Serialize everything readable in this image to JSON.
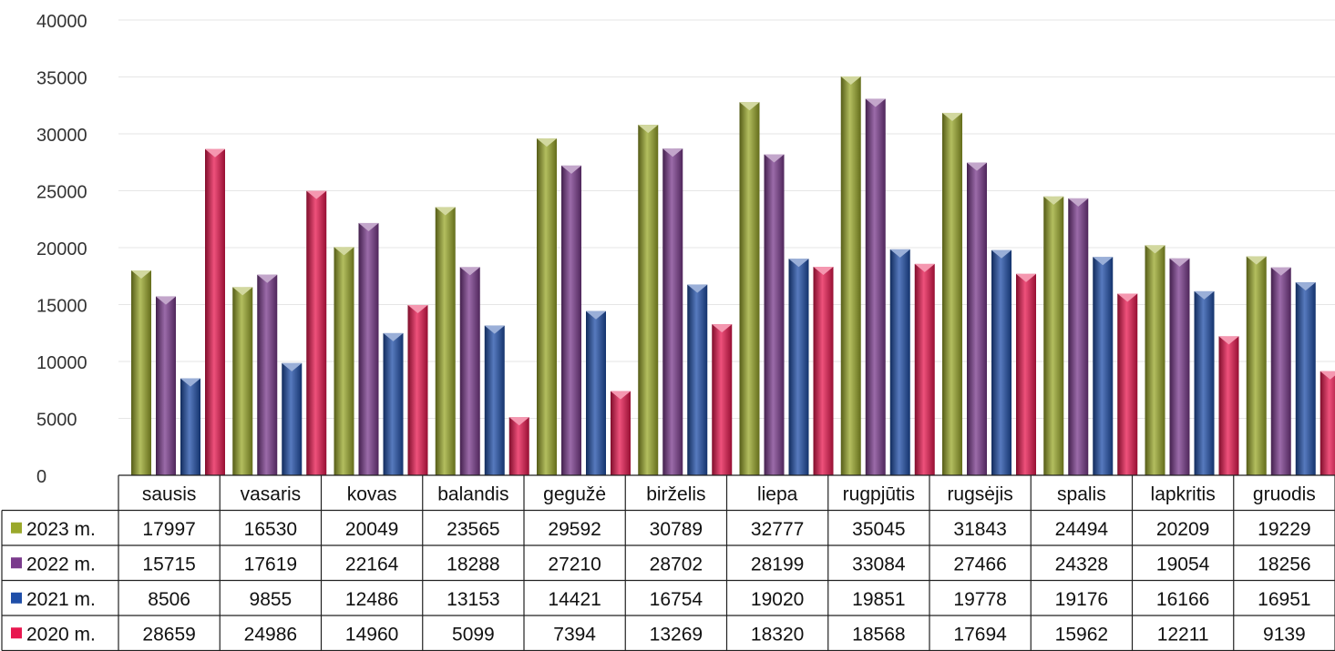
{
  "chart_data": {
    "type": "bar",
    "title": "",
    "xlabel": "",
    "ylabel": "",
    "ylim": [
      0,
      40000
    ],
    "y_ticks": [
      0,
      5000,
      10000,
      15000,
      20000,
      25000,
      30000,
      35000,
      40000
    ],
    "grid": true,
    "legend_placement": "data-table-left",
    "categories": [
      "sausis",
      "vasaris",
      "kovas",
      "balandis",
      "gegužė",
      "birželis",
      "liepa",
      "rugpjūtis",
      "rugsėjis",
      "spalis",
      "lapkritis",
      "gruodis"
    ],
    "series": [
      {
        "name": "2023 m.",
        "color": "#9aa82a",
        "values": [
          17997,
          16530,
          20049,
          23565,
          29592,
          30789,
          32777,
          35045,
          31843,
          24494,
          20209,
          19229
        ]
      },
      {
        "name": "2022 m.",
        "color": "#7a3a8c",
        "values": [
          15715,
          17619,
          22164,
          18288,
          27210,
          28702,
          28199,
          33084,
          27466,
          24328,
          19054,
          18256
        ]
      },
      {
        "name": "2021 m.",
        "color": "#1f4ea8",
        "values": [
          8506,
          9855,
          12486,
          13153,
          14421,
          16754,
          19020,
          19851,
          19778,
          19176,
          16166,
          16951
        ]
      },
      {
        "name": "2020 m.",
        "color": "#e8174f",
        "values": [
          28659,
          24986,
          14960,
          5099,
          7394,
          13269,
          18320,
          18568,
          17694,
          15962,
          12211,
          9139
        ]
      }
    ]
  }
}
